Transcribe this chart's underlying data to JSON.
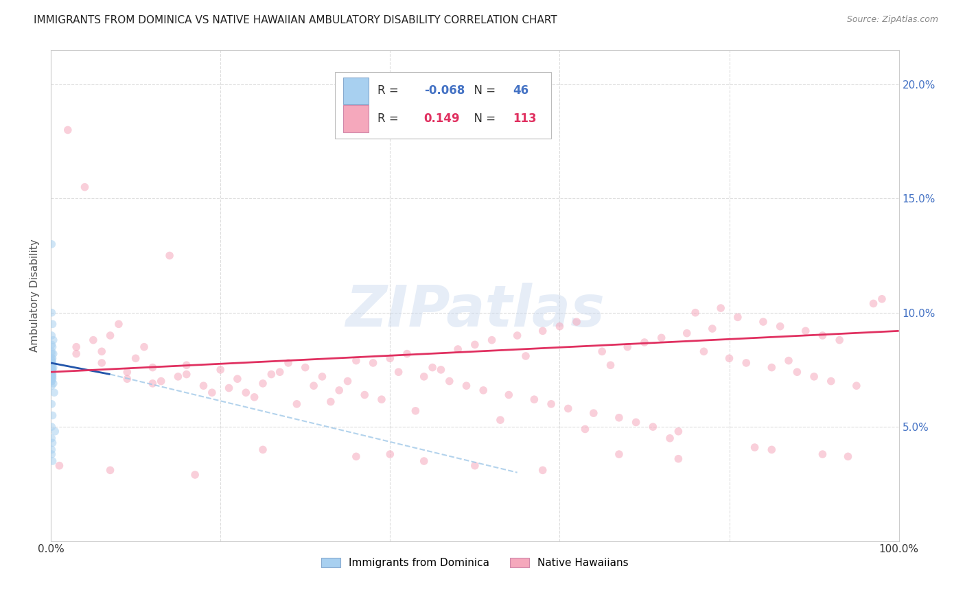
{
  "title": "IMMIGRANTS FROM DOMINICA VS NATIVE HAWAIIAN AMBULATORY DISABILITY CORRELATION CHART",
  "source": "Source: ZipAtlas.com",
  "ylabel": "Ambulatory Disability",
  "blue_R": -0.068,
  "blue_N": 46,
  "pink_R": 0.149,
  "pink_N": 113,
  "blue_color": "#A8D0F0",
  "pink_color": "#F5A8BC",
  "blue_line_color": "#2255AA",
  "pink_line_color": "#E03060",
  "blue_dashed_color": "#A0C8E8",
  "watermark": "ZIPatlas",
  "legend_blue_label": "Immigrants from Dominica",
  "legend_pink_label": "Native Hawaiians",
  "marker_size": 70,
  "marker_alpha": 0.55,
  "ylim_max": 0.215,
  "blue_points_x": [
    0.001,
    0.001,
    0.002,
    0.001,
    0.003,
    0.001,
    0.002,
    0.001,
    0.001,
    0.003,
    0.001,
    0.002,
    0.001,
    0.001,
    0.002,
    0.001,
    0.001,
    0.002,
    0.001,
    0.003,
    0.001,
    0.001,
    0.002,
    0.001,
    0.001,
    0.001,
    0.002,
    0.001,
    0.001,
    0.002,
    0.001,
    0.002,
    0.001,
    0.001,
    0.003,
    0.001,
    0.004,
    0.001,
    0.002,
    0.001,
    0.005,
    0.001,
    0.002,
    0.001,
    0.001,
    0.002
  ],
  "blue_points_y": [
    0.13,
    0.1,
    0.095,
    0.09,
    0.088,
    0.086,
    0.085,
    0.083,
    0.082,
    0.082,
    0.08,
    0.08,
    0.079,
    0.079,
    0.078,
    0.078,
    0.077,
    0.077,
    0.076,
    0.076,
    0.075,
    0.075,
    0.075,
    0.074,
    0.074,
    0.073,
    0.073,
    0.072,
    0.072,
    0.072,
    0.071,
    0.071,
    0.07,
    0.07,
    0.069,
    0.068,
    0.065,
    0.06,
    0.055,
    0.05,
    0.048,
    0.045,
    0.043,
    0.04,
    0.038,
    0.035
  ],
  "pink_points_x": [
    0.02,
    0.05,
    0.03,
    0.08,
    0.1,
    0.04,
    0.06,
    0.12,
    0.07,
    0.09,
    0.15,
    0.11,
    0.13,
    0.18,
    0.14,
    0.2,
    0.16,
    0.22,
    0.19,
    0.25,
    0.21,
    0.28,
    0.24,
    0.3,
    0.27,
    0.32,
    0.29,
    0.35,
    0.31,
    0.38,
    0.34,
    0.4,
    0.37,
    0.42,
    0.39,
    0.45,
    0.41,
    0.48,
    0.44,
    0.5,
    0.47,
    0.52,
    0.49,
    0.55,
    0.51,
    0.58,
    0.54,
    0.6,
    0.57,
    0.62,
    0.59,
    0.65,
    0.61,
    0.68,
    0.64,
    0.7,
    0.67,
    0.72,
    0.69,
    0.75,
    0.71,
    0.78,
    0.74,
    0.8,
    0.76,
    0.82,
    0.79,
    0.85,
    0.81,
    0.88,
    0.84,
    0.9,
    0.86,
    0.92,
    0.89,
    0.95,
    0.91,
    0.97,
    0.93,
    0.98,
    0.03,
    0.06,
    0.09,
    0.12,
    0.16,
    0.23,
    0.26,
    0.33,
    0.36,
    0.43,
    0.46,
    0.53,
    0.56,
    0.63,
    0.66,
    0.73,
    0.77,
    0.83,
    0.87,
    0.94,
    0.01,
    0.07,
    0.17,
    0.36,
    0.44,
    0.5,
    0.58,
    0.67,
    0.74,
    0.85,
    0.91,
    0.25,
    0.4
  ],
  "pink_points_y": [
    0.18,
    0.088,
    0.082,
    0.095,
    0.08,
    0.155,
    0.078,
    0.076,
    0.09,
    0.074,
    0.072,
    0.085,
    0.07,
    0.068,
    0.125,
    0.075,
    0.073,
    0.071,
    0.065,
    0.069,
    0.067,
    0.078,
    0.063,
    0.076,
    0.074,
    0.072,
    0.06,
    0.07,
    0.068,
    0.078,
    0.066,
    0.08,
    0.064,
    0.082,
    0.062,
    0.076,
    0.074,
    0.084,
    0.072,
    0.086,
    0.07,
    0.088,
    0.068,
    0.09,
    0.066,
    0.092,
    0.064,
    0.094,
    0.062,
    0.096,
    0.06,
    0.083,
    0.058,
    0.085,
    0.056,
    0.087,
    0.054,
    0.089,
    0.052,
    0.091,
    0.05,
    0.093,
    0.048,
    0.08,
    0.1,
    0.078,
    0.102,
    0.076,
    0.098,
    0.074,
    0.096,
    0.072,
    0.094,
    0.07,
    0.092,
    0.068,
    0.09,
    0.104,
    0.088,
    0.106,
    0.085,
    0.083,
    0.071,
    0.069,
    0.077,
    0.065,
    0.073,
    0.061,
    0.079,
    0.057,
    0.075,
    0.053,
    0.081,
    0.049,
    0.077,
    0.045,
    0.083,
    0.041,
    0.079,
    0.037,
    0.033,
    0.031,
    0.029,
    0.037,
    0.035,
    0.033,
    0.031,
    0.038,
    0.036,
    0.04,
    0.038,
    0.04,
    0.038
  ]
}
